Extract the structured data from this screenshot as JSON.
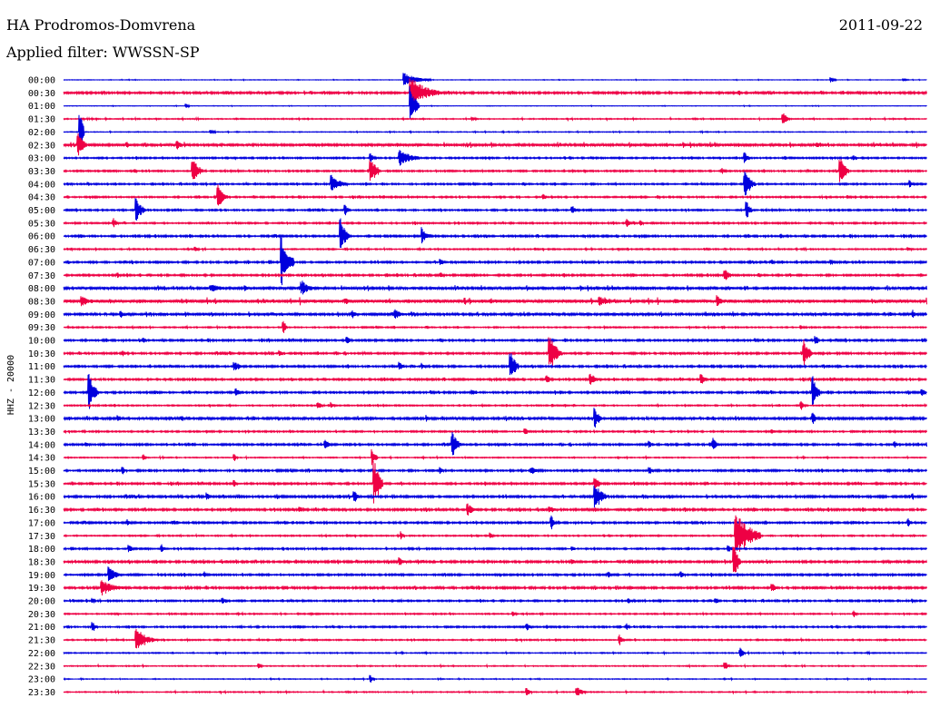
{
  "header": {
    "station": "HA Prodromos-Domvrena",
    "filter": "Applied filter: WWSSN-SP",
    "date": "2011-09-22"
  },
  "chart_data": {
    "type": "line",
    "title": "HA Prodromos-Domvrena",
    "subtitle": "Applied filter: WWSSN-SP",
    "date": "2011-09-22",
    "ylabel": "HHZ - 20000",
    "xlabel": "",
    "colors": {
      "odd_rows": "#0000dd",
      "even_rows": "#ee0044",
      "text": "#000000",
      "background": "#ffffff"
    },
    "rows": [
      {
        "label": "00:00",
        "color": "blue",
        "noise": 0.2,
        "events": [
          [
            445,
            8,
            30
          ],
          [
            915,
            3,
            6
          ],
          [
            995,
            2,
            6
          ]
        ]
      },
      {
        "label": "00:30",
        "color": "red",
        "noise": 0.8,
        "events": [
          [
            452,
            18,
            35
          ],
          [
            305,
            2,
            6
          ]
        ]
      },
      {
        "label": "01:00",
        "color": "blue",
        "noise": 0.2,
        "events": [
          [
            452,
            22,
            10
          ],
          [
            205,
            3,
            4
          ]
        ]
      },
      {
        "label": "01:30",
        "color": "red",
        "noise": 0.4,
        "events": [
          [
            862,
            8,
            8
          ],
          [
            520,
            3,
            6
          ]
        ]
      },
      {
        "label": "02:00",
        "color": "blue",
        "noise": 0.3,
        "events": [
          [
            88,
            25,
            5
          ],
          [
            232,
            3,
            5
          ]
        ]
      },
      {
        "label": "02:30",
        "color": "red",
        "noise": 1.0,
        "events": [
          [
            86,
            16,
            10
          ],
          [
            195,
            6,
            6
          ],
          [
            140,
            4,
            4
          ],
          [
            900,
            3,
            6
          ]
        ]
      },
      {
        "label": "03:00",
        "color": "blue",
        "noise": 0.6,
        "events": [
          [
            440,
            12,
            22
          ],
          [
            408,
            6,
            6
          ],
          [
            820,
            7,
            6
          ],
          [
            940,
            4,
            4
          ]
        ]
      },
      {
        "label": "03:30",
        "color": "red",
        "noise": 0.6,
        "events": [
          [
            212,
            16,
            12
          ],
          [
            408,
            18,
            10
          ],
          [
            925,
            16,
            10
          ],
          [
            795,
            4,
            6
          ],
          [
            148,
            3,
            4
          ]
        ]
      },
      {
        "label": "04:00",
        "color": "blue",
        "noise": 0.6,
        "events": [
          [
            365,
            10,
            18
          ],
          [
            820,
            16,
            12
          ],
          [
            1002,
            5,
            6
          ]
        ]
      },
      {
        "label": "04:30",
        "color": "red",
        "noise": 0.6,
        "events": [
          [
            240,
            14,
            10
          ],
          [
            598,
            4,
            5
          ]
        ]
      },
      {
        "label": "05:00",
        "color": "blue",
        "noise": 0.6,
        "events": [
          [
            150,
            14,
            10
          ],
          [
            630,
            6,
            8
          ],
          [
            380,
            6,
            6
          ],
          [
            822,
            12,
            6
          ]
        ]
      },
      {
        "label": "05:30",
        "color": "red",
        "noise": 0.6,
        "events": [
          [
            125,
            6,
            6
          ],
          [
            690,
            5,
            6
          ],
          [
            705,
            4,
            4
          ]
        ]
      },
      {
        "label": "06:00",
        "color": "blue",
        "noise": 0.7,
        "events": [
          [
            375,
            20,
            10
          ],
          [
            465,
            10,
            10
          ],
          [
            860,
            3,
            4
          ]
        ]
      },
      {
        "label": "06:30",
        "color": "red",
        "noise": 0.5,
        "events": [
          [
            215,
            4,
            5
          ],
          [
            1000,
            3,
            5
          ]
        ]
      },
      {
        "label": "07:00",
        "color": "blue",
        "noise": 0.7,
        "events": [
          [
            310,
            30,
            14
          ],
          [
            485,
            5,
            6
          ],
          [
            915,
            4,
            6
          ],
          [
            850,
            3,
            4
          ]
        ]
      },
      {
        "label": "07:30",
        "color": "red",
        "noise": 0.7,
        "events": [
          [
            798,
            7,
            10
          ],
          [
            485,
            4,
            4
          ],
          [
            130,
            3,
            4
          ]
        ]
      },
      {
        "label": "08:00",
        "color": "blue",
        "noise": 1.0,
        "events": [
          [
            232,
            5,
            30
          ],
          [
            332,
            10,
            14
          ],
          [
            270,
            4,
            8
          ]
        ]
      },
      {
        "label": "08:30",
        "color": "red",
        "noise": 1.3,
        "events": [
          [
            90,
            6,
            20
          ],
          [
            660,
            6,
            20
          ],
          [
            790,
            7,
            8
          ],
          [
            380,
            5,
            6
          ]
        ]
      },
      {
        "label": "09:00",
        "color": "blue",
        "noise": 0.9,
        "events": [
          [
            435,
            7,
            12
          ],
          [
            388,
            5,
            8
          ],
          [
            1005,
            5,
            6
          ],
          [
            133,
            4,
            4
          ]
        ]
      },
      {
        "label": "09:30",
        "color": "red",
        "noise": 0.5,
        "events": [
          [
            312,
            10,
            4
          ],
          [
            882,
            3,
            4
          ]
        ]
      },
      {
        "label": "10:00",
        "color": "blue",
        "noise": 0.7,
        "events": [
          [
            382,
            6,
            6
          ],
          [
            898,
            6,
            5
          ],
          [
            158,
            4,
            4
          ],
          [
            485,
            3,
            4
          ]
        ]
      },
      {
        "label": "10:30",
        "color": "red",
        "noise": 0.7,
        "events": [
          [
            605,
            22,
            14
          ],
          [
            885,
            16,
            10
          ],
          [
            135,
            4,
            4
          ],
          [
            308,
            4,
            4
          ]
        ]
      },
      {
        "label": "11:00",
        "color": "blue",
        "noise": 0.7,
        "events": [
          [
            562,
            18,
            10
          ],
          [
            258,
            6,
            12
          ],
          [
            440,
            5,
            6
          ],
          [
            465,
            4,
            4
          ]
        ]
      },
      {
        "label": "11:30",
        "color": "red",
        "noise": 0.7,
        "events": [
          [
            650,
            8,
            12
          ],
          [
            772,
            8,
            8
          ],
          [
            602,
            5,
            6
          ]
        ]
      },
      {
        "label": "12:00",
        "color": "blue",
        "noise": 0.7,
        "events": [
          [
            98,
            22,
            10
          ],
          [
            895,
            18,
            8
          ],
          [
            260,
            5,
            6
          ],
          [
            520,
            4,
            4
          ],
          [
            1015,
            5,
            5
          ]
        ]
      },
      {
        "label": "12:30",
        "color": "red",
        "noise": 0.5,
        "events": [
          [
            350,
            5,
            6
          ],
          [
            882,
            5,
            5
          ],
          [
            365,
            4,
            4
          ]
        ]
      },
      {
        "label": "13:00",
        "color": "blue",
        "noise": 0.9,
        "events": [
          [
            655,
            12,
            8
          ],
          [
            130,
            4,
            8
          ],
          [
            200,
            4,
            4
          ],
          [
            470,
            4,
            4
          ],
          [
            895,
            8,
            6
          ]
        ]
      },
      {
        "label": "13:30",
        "color": "red",
        "noise": 0.6,
        "events": [
          [
            578,
            5,
            6
          ],
          [
            850,
            4,
            4
          ]
        ]
      },
      {
        "label": "14:00",
        "color": "blue",
        "noise": 0.7,
        "events": [
          [
            498,
            14,
            10
          ],
          [
            358,
            7,
            6
          ],
          [
            785,
            8,
            6
          ],
          [
            715,
            5,
            4
          ],
          [
            95,
            4,
            4
          ],
          [
            985,
            4,
            6
          ]
        ]
      },
      {
        "label": "14:30",
        "color": "red",
        "noise": 0.4,
        "events": [
          [
            410,
            10,
            6
          ],
          [
            158,
            4,
            4
          ],
          [
            258,
            4,
            4
          ]
        ]
      },
      {
        "label": "15:00",
        "color": "blue",
        "noise": 0.7,
        "events": [
          [
            585,
            4,
            16
          ],
          [
            135,
            5,
            5
          ],
          [
            715,
            5,
            5
          ],
          [
            485,
            4,
            4
          ]
        ]
      },
      {
        "label": "15:30",
        "color": "red",
        "noise": 0.7,
        "events": [
          [
            412,
            28,
            10
          ],
          [
            655,
            10,
            6
          ],
          [
            258,
            4,
            4
          ]
        ]
      },
      {
        "label": "16:00",
        "color": "blue",
        "noise": 0.8,
        "events": [
          [
            655,
            16,
            14
          ],
          [
            390,
            8,
            6
          ],
          [
            228,
            5,
            5
          ],
          [
            1005,
            4,
            4
          ]
        ]
      },
      {
        "label": "16:30",
        "color": "red",
        "noise": 0.8,
        "events": [
          [
            515,
            7,
            12
          ],
          [
            605,
            5,
            10
          ],
          [
            330,
            4,
            8
          ]
        ]
      },
      {
        "label": "17:00",
        "color": "blue",
        "noise": 0.7,
        "events": [
          [
            607,
            10,
            4
          ],
          [
            140,
            4,
            8
          ],
          [
            1000,
            5,
            4
          ],
          [
            190,
            3,
            4
          ]
        ]
      },
      {
        "label": "17:30",
        "color": "red",
        "noise": 0.5,
        "events": [
          [
            810,
            30,
            28
          ],
          [
            442,
            5,
            4
          ],
          [
            540,
            4,
            4
          ]
        ]
      },
      {
        "label": "18:00",
        "color": "blue",
        "noise": 0.6,
        "events": [
          [
            142,
            5,
            6
          ],
          [
            178,
            5,
            4
          ],
          [
            802,
            4,
            6
          ],
          [
            630,
            3,
            4
          ]
        ]
      },
      {
        "label": "18:30",
        "color": "red",
        "noise": 0.8,
        "events": [
          [
            808,
            20,
            8
          ],
          [
            440,
            6,
            8
          ],
          [
            630,
            4,
            4
          ]
        ]
      },
      {
        "label": "19:00",
        "color": "blue",
        "noise": 0.7,
        "events": [
          [
            120,
            10,
            14
          ],
          [
            750,
            5,
            5
          ],
          [
            225,
            4,
            4
          ],
          [
            670,
            4,
            4
          ]
        ]
      },
      {
        "label": "19:30",
        "color": "red",
        "noise": 0.8,
        "events": [
          [
            112,
            9,
            28
          ],
          [
            850,
            7,
            6
          ]
        ]
      },
      {
        "label": "20:00",
        "color": "blue",
        "noise": 0.6,
        "events": [
          [
            692,
            3,
            12
          ],
          [
            245,
            5,
            5
          ],
          [
            788,
            5,
            4
          ],
          [
            102,
            4,
            4
          ],
          [
            1005,
            3,
            4
          ]
        ]
      },
      {
        "label": "20:30",
        "color": "red",
        "noise": 0.5,
        "events": [
          [
            940,
            4,
            4
          ],
          [
            565,
            3,
            4
          ]
        ]
      },
      {
        "label": "21:00",
        "color": "blue",
        "noise": 0.6,
        "events": [
          [
            102,
            6,
            6
          ],
          [
            580,
            4,
            8
          ],
          [
            690,
            4,
            4
          ]
        ]
      },
      {
        "label": "21:30",
        "color": "red",
        "noise": 0.5,
        "events": [
          [
            150,
            14,
            22
          ],
          [
            682,
            6,
            6
          ]
        ]
      },
      {
        "label": "22:00",
        "color": "blue",
        "noise": 0.4,
        "events": [
          [
            815,
            6,
            6
          ]
        ]
      },
      {
        "label": "22:30",
        "color": "red",
        "noise": 0.4,
        "events": [
          [
            798,
            6,
            6
          ],
          [
            285,
            3,
            4
          ]
        ]
      },
      {
        "label": "23:00",
        "color": "blue",
        "noise": 0.3,
        "events": [
          [
            408,
            5,
            5
          ]
        ]
      },
      {
        "label": "23:30",
        "color": "red",
        "noise": 0.4,
        "events": [
          [
            635,
            7,
            10
          ],
          [
            580,
            5,
            6
          ]
        ]
      }
    ]
  }
}
